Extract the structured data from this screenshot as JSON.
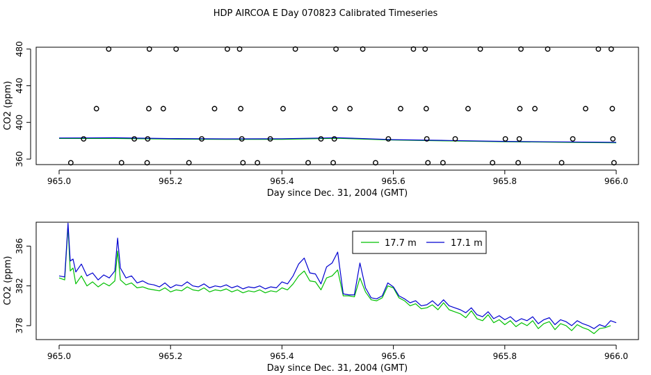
{
  "title": "HDP AIRCOA E  Day 070823  Calibrated Timeseries",
  "chart_data": [
    {
      "type": "scatter",
      "xlabel": "Day since Dec. 31, 2004 (GMT)",
      "ylabel": "CO2 (ppm)",
      "xlim": [
        965.0,
        966.0
      ],
      "ylim": [
        354,
        482
      ],
      "xticks": [
        965.0,
        965.2,
        965.4,
        965.6,
        965.8,
        966.0
      ],
      "xtick_labels": [
        "965.0",
        "965.2",
        "965.4",
        "965.6",
        "965.8",
        "966.0"
      ],
      "yticks": [
        360,
        400,
        440,
        480
      ],
      "ytick_labels": [
        "360",
        "400",
        "440",
        "480"
      ],
      "calibration_points": [
        {
          "x": 965.021,
          "y": 356
        },
        {
          "x": 965.044,
          "y": 382
        },
        {
          "x": 965.067,
          "y": 415
        },
        {
          "x": 965.089,
          "y": 480
        },
        {
          "x": 965.112,
          "y": 356
        },
        {
          "x": 965.135,
          "y": 382
        },
        {
          "x": 965.158,
          "y": 356
        },
        {
          "x": 965.159,
          "y": 382
        },
        {
          "x": 965.161,
          "y": 415
        },
        {
          "x": 965.162,
          "y": 480
        },
        {
          "x": 965.187,
          "y": 415
        },
        {
          "x": 965.21,
          "y": 480
        },
        {
          "x": 965.233,
          "y": 356
        },
        {
          "x": 965.256,
          "y": 382
        },
        {
          "x": 965.279,
          "y": 415
        },
        {
          "x": 965.302,
          "y": 480
        },
        {
          "x": 965.324,
          "y": 480
        },
        {
          "x": 965.326,
          "y": 415
        },
        {
          "x": 965.328,
          "y": 382
        },
        {
          "x": 965.33,
          "y": 356
        },
        {
          "x": 965.356,
          "y": 356
        },
        {
          "x": 965.379,
          "y": 382
        },
        {
          "x": 965.402,
          "y": 415
        },
        {
          "x": 965.424,
          "y": 480
        },
        {
          "x": 965.447,
          "y": 356
        },
        {
          "x": 965.47,
          "y": 382
        },
        {
          "x": 965.492,
          "y": 356
        },
        {
          "x": 965.494,
          "y": 382
        },
        {
          "x": 965.495,
          "y": 415
        },
        {
          "x": 965.497,
          "y": 480
        },
        {
          "x": 965.522,
          "y": 415
        },
        {
          "x": 965.545,
          "y": 480
        },
        {
          "x": 965.568,
          "y": 356
        },
        {
          "x": 965.591,
          "y": 382
        },
        {
          "x": 965.613,
          "y": 415
        },
        {
          "x": 965.636,
          "y": 480
        },
        {
          "x": 965.657,
          "y": 480
        },
        {
          "x": 965.659,
          "y": 415
        },
        {
          "x": 965.66,
          "y": 382
        },
        {
          "x": 965.662,
          "y": 356
        },
        {
          "x": 965.689,
          "y": 356
        },
        {
          "x": 965.711,
          "y": 382
        },
        {
          "x": 965.734,
          "y": 415
        },
        {
          "x": 965.756,
          "y": 480
        },
        {
          "x": 965.778,
          "y": 356
        },
        {
          "x": 965.801,
          "y": 382
        },
        {
          "x": 965.824,
          "y": 356
        },
        {
          "x": 965.826,
          "y": 382
        },
        {
          "x": 965.827,
          "y": 415
        },
        {
          "x": 965.829,
          "y": 480
        },
        {
          "x": 965.854,
          "y": 415
        },
        {
          "x": 965.877,
          "y": 480
        },
        {
          "x": 965.902,
          "y": 356
        },
        {
          "x": 965.922,
          "y": 382
        },
        {
          "x": 965.945,
          "y": 415
        },
        {
          "x": 965.968,
          "y": 480
        },
        {
          "x": 965.991,
          "y": 480
        },
        {
          "x": 965.993,
          "y": 415
        },
        {
          "x": 965.994,
          "y": 382
        },
        {
          "x": 965.996,
          "y": 356
        }
      ],
      "series": [
        {
          "name": "17.7 m",
          "color": "#00c000",
          "x": [
            965.0,
            965.1,
            965.2,
            965.3,
            965.4,
            965.5,
            965.6,
            965.7,
            965.8,
            965.9,
            966.0
          ],
          "y": [
            382.5,
            382.5,
            381.8,
            381.5,
            381.6,
            382.6,
            380.8,
            379.8,
            378.9,
            378.3,
            377.8
          ]
        },
        {
          "name": "17.1 m",
          "color": "#0000d0",
          "x": [
            965.0,
            965.1,
            965.2,
            965.3,
            965.4,
            965.5,
            965.6,
            965.7,
            965.8,
            965.9,
            966.0
          ],
          "y": [
            383.0,
            383.2,
            382.3,
            382.0,
            382.2,
            383.3,
            381.2,
            380.3,
            379.3,
            378.8,
            378.2
          ]
        }
      ]
    },
    {
      "type": "line",
      "xlabel": "Day since Dec. 31, 2004 (GMT)",
      "ylabel": "CO2 (ppm)",
      "xlim": [
        965.0,
        966.0
      ],
      "ylim": [
        376.6,
        388.4
      ],
      "xticks": [
        965.0,
        965.2,
        965.4,
        965.6,
        965.8,
        966.0
      ],
      "xtick_labels": [
        "965.0",
        "965.2",
        "965.4",
        "965.6",
        "965.8",
        "966.0"
      ],
      "yticks": [
        378,
        382,
        386
      ],
      "ytick_labels": [
        "378",
        "382",
        "386"
      ],
      "legend": "top-center",
      "series": [
        {
          "name": "17.7 m",
          "color": "#00c000",
          "x": [
            965.0,
            965.01,
            965.016,
            965.02,
            965.025,
            965.03,
            965.04,
            965.05,
            965.06,
            965.07,
            965.08,
            965.09,
            965.1,
            965.105,
            965.11,
            965.12,
            965.13,
            965.14,
            965.15,
            965.16,
            965.17,
            965.18,
            965.19,
            965.2,
            965.21,
            965.22,
            965.23,
            965.24,
            965.25,
            965.26,
            965.27,
            965.28,
            965.29,
            965.3,
            965.31,
            965.32,
            965.33,
            965.34,
            965.35,
            965.36,
            965.37,
            965.38,
            965.39,
            965.4,
            965.41,
            965.42,
            965.43,
            965.44,
            965.45,
            965.46,
            965.47,
            965.48,
            965.49,
            965.5,
            965.51,
            965.52,
            965.53,
            965.54,
            965.55,
            965.56,
            965.57,
            965.58,
            965.59,
            965.6,
            965.61,
            965.62,
            965.63,
            965.64,
            965.65,
            965.66,
            965.67,
            965.68,
            965.69,
            965.7,
            965.71,
            965.72,
            965.73,
            965.74,
            965.75,
            965.76,
            965.77,
            965.78,
            965.79,
            965.8,
            965.81,
            965.82,
            965.83,
            965.84,
            965.85,
            965.86,
            965.87,
            965.88,
            965.89,
            965.9,
            965.91,
            965.92,
            965.93,
            965.94,
            965.95,
            965.96,
            965.97,
            965.98,
            965.99
          ],
          "y": [
            382.8,
            382.6,
            388.0,
            383.5,
            383.8,
            382.2,
            383.0,
            382.0,
            382.4,
            381.9,
            382.3,
            382.0,
            382.5,
            385.5,
            382.6,
            382.1,
            382.3,
            381.8,
            381.9,
            381.7,
            381.6,
            381.5,
            381.8,
            381.4,
            381.6,
            381.5,
            381.9,
            381.6,
            381.5,
            381.8,
            381.4,
            381.6,
            381.5,
            381.7,
            381.4,
            381.6,
            381.3,
            381.5,
            381.4,
            381.6,
            381.3,
            381.5,
            381.4,
            381.8,
            381.6,
            382.2,
            383.0,
            383.5,
            382.5,
            382.4,
            381.6,
            382.8,
            383.0,
            383.6,
            381.0,
            381.0,
            380.9,
            382.8,
            381.4,
            380.6,
            380.5,
            380.8,
            382.0,
            381.8,
            380.8,
            380.5,
            380.0,
            380.2,
            379.7,
            379.8,
            380.1,
            379.6,
            380.3,
            379.6,
            379.4,
            379.2,
            378.8,
            379.5,
            378.7,
            378.5,
            379.1,
            378.3,
            378.6,
            378.1,
            378.5,
            377.9,
            378.3,
            378.0,
            378.5,
            377.7,
            378.2,
            378.4,
            377.6,
            378.2,
            378.0,
            377.5,
            378.1,
            377.8,
            377.6,
            377.2,
            377.7,
            377.8,
            378.0
          ]
        },
        {
          "name": "17.1 m",
          "color": "#0000d0",
          "x": [
            965.0,
            965.01,
            965.016,
            965.02,
            965.025,
            965.03,
            965.04,
            965.05,
            965.06,
            965.07,
            965.08,
            965.09,
            965.1,
            965.105,
            965.11,
            965.12,
            965.13,
            965.14,
            965.15,
            965.16,
            965.17,
            965.18,
            965.19,
            965.2,
            965.21,
            965.22,
            965.23,
            965.24,
            965.25,
            965.26,
            965.27,
            965.28,
            965.29,
            965.3,
            965.31,
            965.32,
            965.33,
            965.34,
            965.35,
            965.36,
            965.37,
            965.38,
            965.39,
            965.4,
            965.41,
            965.42,
            965.43,
            965.44,
            965.45,
            965.46,
            965.47,
            965.48,
            965.49,
            965.5,
            965.51,
            965.52,
            965.53,
            965.54,
            965.55,
            965.56,
            965.57,
            965.58,
            965.59,
            965.6,
            965.61,
            965.62,
            965.63,
            965.64,
            965.65,
            965.66,
            965.67,
            965.68,
            965.69,
            965.7,
            965.71,
            965.72,
            965.73,
            965.74,
            965.75,
            965.76,
            965.77,
            965.78,
            965.79,
            965.8,
            965.81,
            965.82,
            965.83,
            965.84,
            965.85,
            965.86,
            965.87,
            965.88,
            965.89,
            965.9,
            965.91,
            965.92,
            965.93,
            965.94,
            965.95,
            965.96,
            965.97,
            965.98,
            965.99,
            966.0
          ],
          "y": [
            383.0,
            382.9,
            388.3,
            384.5,
            384.7,
            383.4,
            384.2,
            383.0,
            383.3,
            382.6,
            383.1,
            382.8,
            383.5,
            386.8,
            383.8,
            382.8,
            383.0,
            382.3,
            382.5,
            382.2,
            382.1,
            381.9,
            382.3,
            381.8,
            382.1,
            382.0,
            382.4,
            382.0,
            381.9,
            382.2,
            381.8,
            382.0,
            381.9,
            382.1,
            381.8,
            382.0,
            381.7,
            381.9,
            381.8,
            382.0,
            381.7,
            381.9,
            381.8,
            382.4,
            382.2,
            383.0,
            384.2,
            384.8,
            383.3,
            383.2,
            382.2,
            383.9,
            384.3,
            385.4,
            381.2,
            381.1,
            381.1,
            384.3,
            381.8,
            380.8,
            380.7,
            381.0,
            382.3,
            381.9,
            381.0,
            380.7,
            380.3,
            380.5,
            380.0,
            380.1,
            380.5,
            380.0,
            380.6,
            380.0,
            379.8,
            379.6,
            379.3,
            379.8,
            379.1,
            378.9,
            379.4,
            378.7,
            379.0,
            378.6,
            378.9,
            378.4,
            378.7,
            378.5,
            378.9,
            378.2,
            378.6,
            378.8,
            378.1,
            378.6,
            378.4,
            378.0,
            378.5,
            378.2,
            378.0,
            377.7,
            378.1,
            377.9,
            378.5,
            378.3
          ]
        }
      ]
    }
  ]
}
